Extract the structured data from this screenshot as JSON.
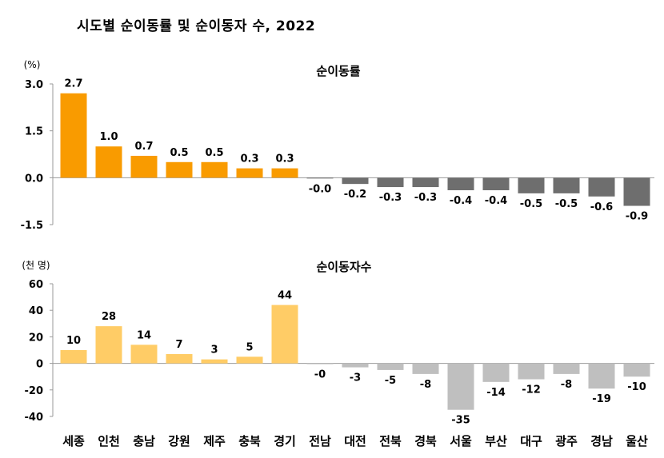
{
  "title": "시도별 순이동률 및 순이동자 수, 2022",
  "categories": [
    "세종",
    "인천",
    "충남",
    "강원",
    "제주",
    "충북",
    "경기",
    "전남",
    "대전",
    "전북",
    "경북",
    "서울",
    "부산",
    "대구",
    "광주",
    "경남",
    "울산"
  ],
  "colors": {
    "rate_positive": "#F99B00",
    "rate_negative": "#6E6E6E",
    "count_positive": "#FFCC66",
    "count_negative": "#BFBFBF",
    "axis": "#999999"
  },
  "chart_data": [
    {
      "type": "bar",
      "title": "순이동률",
      "unit": "(%)",
      "categories": [
        "세종",
        "인천",
        "충남",
        "강원",
        "제주",
        "충북",
        "경기",
        "전남",
        "대전",
        "전북",
        "경북",
        "서울",
        "부산",
        "대구",
        "광주",
        "경남",
        "울산"
      ],
      "values": [
        2.7,
        1.0,
        0.7,
        0.5,
        0.5,
        0.3,
        0.3,
        -0.02,
        -0.2,
        -0.3,
        -0.3,
        -0.4,
        -0.4,
        -0.5,
        -0.5,
        -0.6,
        -0.9
      ],
      "labels": [
        "2.7",
        "1.0",
        "0.7",
        "0.5",
        "0.5",
        "0.3",
        "0.3",
        "-0.0",
        "-0.2",
        "-0.3",
        "-0.3",
        "-0.4",
        "-0.4",
        "-0.5",
        "-0.5",
        "-0.6",
        "-0.9"
      ],
      "ylim": [
        -1.5,
        3.0
      ],
      "yticks": [
        "3.0",
        "1.5",
        "0.0",
        "-1.5"
      ],
      "ytick_values": [
        3.0,
        1.5,
        0.0,
        -1.5
      ]
    },
    {
      "type": "bar",
      "title": "순이동자수",
      "unit": "(천 명)",
      "categories": [
        "세종",
        "인천",
        "충남",
        "강원",
        "제주",
        "충북",
        "경기",
        "전남",
        "대전",
        "전북",
        "경북",
        "서울",
        "부산",
        "대구",
        "광주",
        "경남",
        "울산"
      ],
      "values": [
        10,
        28,
        14,
        7,
        3,
        5,
        44,
        -0.3,
        -3,
        -5,
        -8,
        -35,
        -14,
        -12,
        -8,
        -19,
        -10
      ],
      "labels": [
        "10",
        "28",
        "14",
        "7",
        "3",
        "5",
        "44",
        "-0",
        "-3",
        "-5",
        "-8",
        "-35",
        "-14",
        "-12",
        "-8",
        "-19",
        "-10"
      ],
      "ylim": [
        -40,
        60
      ],
      "yticks": [
        "60",
        "40",
        "20",
        "0",
        "-20",
        "-40"
      ],
      "ytick_values": [
        60,
        40,
        20,
        0,
        -20,
        -40
      ]
    }
  ]
}
